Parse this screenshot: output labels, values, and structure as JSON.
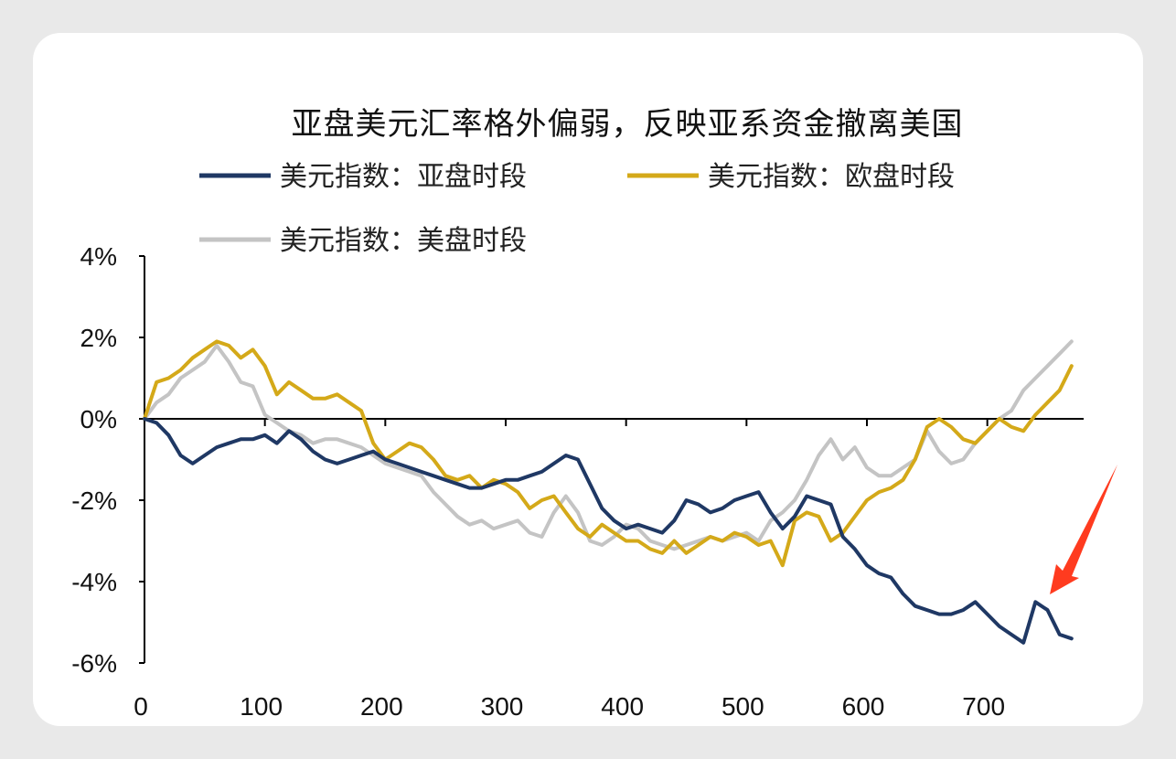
{
  "title": "亚盘美元汇率格外偏弱，反映亚系资金撤离美国",
  "chart_data": {
    "type": "line",
    "title": "亚盘美元汇率格外偏弱，反映亚系资金撤离美国",
    "xlabel": "",
    "ylabel": "",
    "xlim": [
      0,
      780
    ],
    "ylim": [
      -6,
      4
    ],
    "x_ticks": [
      "0",
      "100",
      "200",
      "300",
      "400",
      "500",
      "600",
      "700"
    ],
    "y_ticks": [
      "4%",
      "2%",
      "0%",
      "-2%",
      "-4%",
      "-6%"
    ],
    "legend": "top",
    "series": [
      {
        "name": "美元指数：亚盘时段",
        "color": "#1f3864",
        "x": [
          0,
          10,
          20,
          30,
          40,
          50,
          60,
          70,
          80,
          90,
          100,
          110,
          120,
          130,
          140,
          150,
          160,
          170,
          180,
          190,
          200,
          210,
          220,
          230,
          240,
          250,
          260,
          270,
          280,
          290,
          300,
          310,
          320,
          330,
          340,
          350,
          360,
          370,
          380,
          390,
          400,
          410,
          420,
          430,
          440,
          450,
          460,
          470,
          480,
          490,
          500,
          510,
          520,
          530,
          540,
          550,
          560,
          570,
          580,
          590,
          600,
          610,
          620,
          630,
          640,
          650,
          660,
          670,
          680,
          690,
          700,
          710,
          720,
          730,
          740,
          750,
          760,
          770
        ],
        "values": [
          0,
          -0.1,
          -0.4,
          -0.9,
          -1.1,
          -0.9,
          -0.7,
          -0.6,
          -0.5,
          -0.5,
          -0.4,
          -0.6,
          -0.3,
          -0.5,
          -0.8,
          -1.0,
          -1.1,
          -1.0,
          -0.9,
          -0.8,
          -1.0,
          -1.1,
          -1.2,
          -1.3,
          -1.4,
          -1.5,
          -1.6,
          -1.7,
          -1.7,
          -1.6,
          -1.5,
          -1.5,
          -1.4,
          -1.3,
          -1.1,
          -0.9,
          -1.0,
          -1.6,
          -2.2,
          -2.5,
          -2.7,
          -2.6,
          -2.7,
          -2.8,
          -2.5,
          -2.0,
          -2.1,
          -2.3,
          -2.2,
          -2.0,
          -1.9,
          -1.8,
          -2.3,
          -2.7,
          -2.4,
          -1.9,
          -2.0,
          -2.1,
          -2.9,
          -3.2,
          -3.6,
          -3.8,
          -3.9,
          -4.3,
          -4.6,
          -4.7,
          -4.8,
          -4.8,
          -4.7,
          -4.5,
          -4.8,
          -5.1,
          -5.3,
          -5.5,
          -4.5,
          -4.7,
          -5.3,
          -5.4
        ]
      },
      {
        "name": "美元指数：欧盘时段",
        "color": "#d4a919",
        "x": [
          0,
          10,
          20,
          30,
          40,
          50,
          60,
          70,
          80,
          90,
          100,
          110,
          120,
          130,
          140,
          150,
          160,
          170,
          180,
          190,
          200,
          210,
          220,
          230,
          240,
          250,
          260,
          270,
          280,
          290,
          300,
          310,
          320,
          330,
          340,
          350,
          360,
          370,
          380,
          390,
          400,
          410,
          420,
          430,
          440,
          450,
          460,
          470,
          480,
          490,
          500,
          510,
          520,
          530,
          540,
          550,
          560,
          570,
          580,
          590,
          600,
          610,
          620,
          630,
          640,
          650,
          660,
          670,
          680,
          690,
          700,
          710,
          720,
          730,
          740,
          750,
          760,
          770
        ],
        "values": [
          0,
          0.9,
          1.0,
          1.2,
          1.5,
          1.7,
          1.9,
          1.8,
          1.5,
          1.7,
          1.3,
          0.6,
          0.9,
          0.7,
          0.5,
          0.5,
          0.6,
          0.4,
          0.2,
          -0.6,
          -1.0,
          -0.8,
          -0.6,
          -0.7,
          -1.0,
          -1.4,
          -1.5,
          -1.4,
          -1.7,
          -1.5,
          -1.6,
          -1.8,
          -2.2,
          -2.0,
          -1.9,
          -2.3,
          -2.7,
          -2.9,
          -2.6,
          -2.8,
          -3.0,
          -3.0,
          -3.2,
          -3.3,
          -3.0,
          -3.3,
          -3.1,
          -2.9,
          -3.0,
          -2.8,
          -2.9,
          -3.1,
          -3.0,
          -3.6,
          -2.5,
          -2.3,
          -2.4,
          -3.0,
          -2.8,
          -2.4,
          -2.0,
          -1.8,
          -1.7,
          -1.5,
          -1.0,
          -0.2,
          0.0,
          -0.2,
          -0.5,
          -0.6,
          -0.3,
          0.0,
          -0.2,
          -0.3,
          0.1,
          0.4,
          0.7,
          1.3
        ]
      },
      {
        "name": "美元指数：美盘时段",
        "color": "#c4c4c4",
        "x": [
          0,
          10,
          20,
          30,
          40,
          50,
          60,
          70,
          80,
          90,
          100,
          110,
          120,
          130,
          140,
          150,
          160,
          170,
          180,
          190,
          200,
          210,
          220,
          230,
          240,
          250,
          260,
          270,
          280,
          290,
          300,
          310,
          320,
          330,
          340,
          350,
          360,
          370,
          380,
          390,
          400,
          410,
          420,
          430,
          440,
          450,
          460,
          470,
          480,
          490,
          500,
          510,
          520,
          530,
          540,
          550,
          560,
          570,
          580,
          590,
          600,
          610,
          620,
          630,
          640,
          650,
          660,
          670,
          680,
          690,
          700,
          710,
          720,
          730,
          740,
          750,
          760,
          770
        ],
        "values": [
          0,
          0.4,
          0.6,
          1.0,
          1.2,
          1.4,
          1.8,
          1.4,
          0.9,
          0.8,
          0.1,
          -0.1,
          -0.3,
          -0.4,
          -0.6,
          -0.5,
          -0.5,
          -0.6,
          -0.7,
          -0.9,
          -1.1,
          -1.2,
          -1.3,
          -1.4,
          -1.8,
          -2.1,
          -2.4,
          -2.6,
          -2.5,
          -2.7,
          -2.6,
          -2.5,
          -2.8,
          -2.9,
          -2.3,
          -1.9,
          -2.3,
          -3.0,
          -3.1,
          -2.9,
          -2.6,
          -2.7,
          -3.0,
          -3.1,
          -3.2,
          -3.1,
          -3.0,
          -2.9,
          -3.0,
          -2.9,
          -2.8,
          -3.0,
          -2.5,
          -2.3,
          -2.0,
          -1.5,
          -0.9,
          -0.5,
          -1.0,
          -0.7,
          -1.2,
          -1.4,
          -1.4,
          -1.2,
          -1.0,
          -0.3,
          -0.8,
          -1.1,
          -1.0,
          -0.6,
          -0.3,
          0.0,
          0.2,
          0.7,
          1.0,
          1.3,
          1.6,
          1.9
        ]
      }
    ]
  }
}
